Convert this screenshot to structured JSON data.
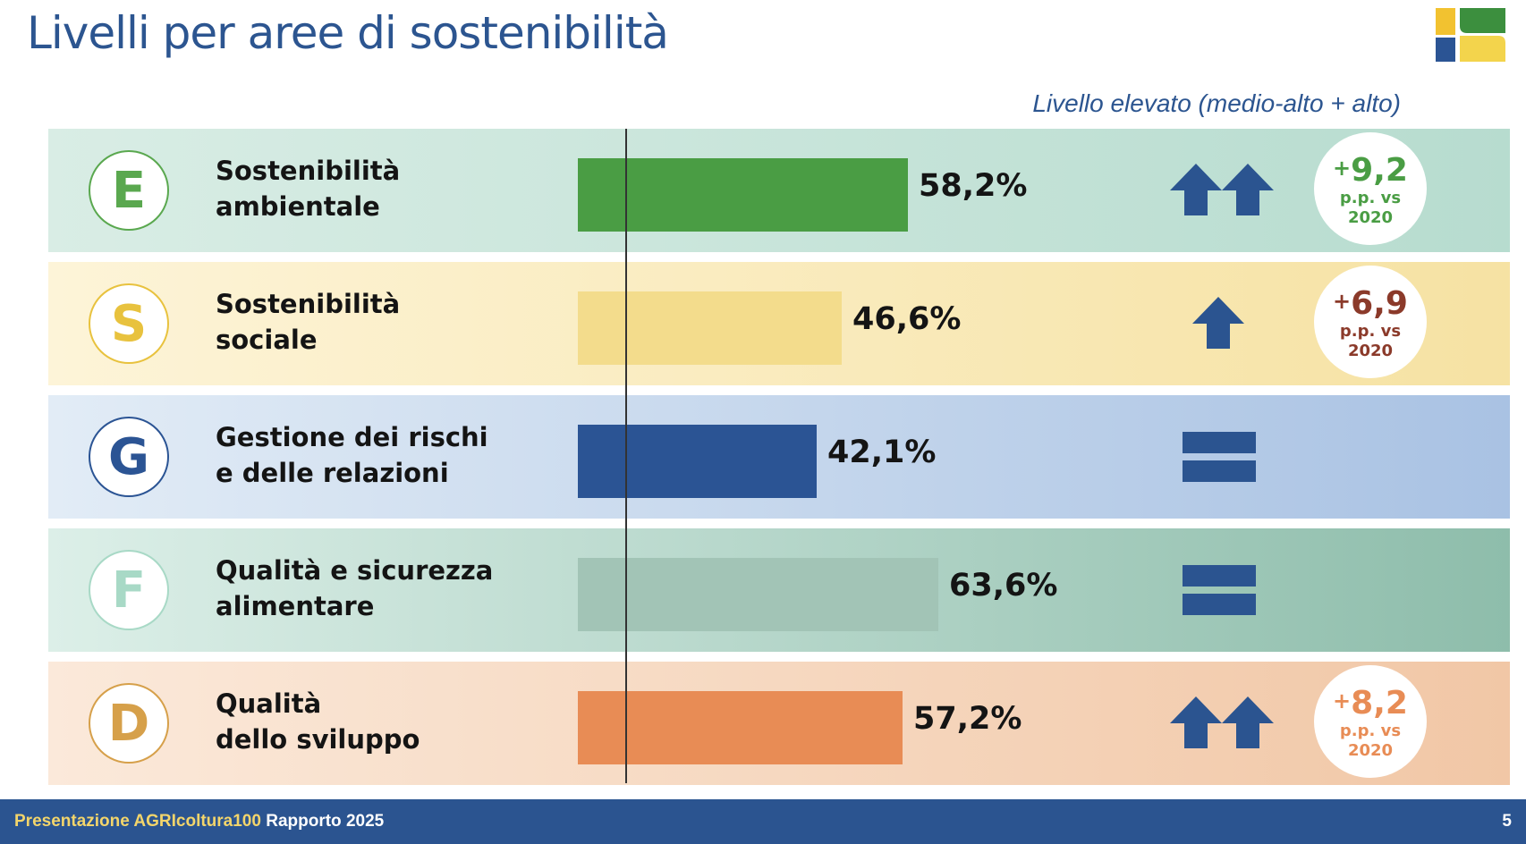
{
  "title": "Livelli per aree di sostenibilità",
  "subtitle": "Livello elevato (medio-alto + alto)",
  "colors": {
    "title": "#2c5590",
    "footer_bg": "#2b5490",
    "footer_highlight": "#f3d56b",
    "arrow": "#2b5490"
  },
  "logo_icon": "agricoltura100-logo-icon",
  "chart_data": {
    "type": "bar",
    "orientation": "horizontal",
    "unit": "%",
    "categories": [
      "Sostenibilità ambientale",
      "Sostenibilità sociale",
      "Gestione dei rischi e delle relazioni",
      "Qualità e sicurezza alimentare",
      "Qualità dello sviluppo"
    ],
    "values": [
      58.2,
      46.6,
      42.1,
      63.6,
      57.2
    ],
    "xlim": [
      0,
      100
    ],
    "grid": false
  },
  "rows": [
    {
      "letter": "E",
      "label_lines": [
        "Sostenibilità",
        "ambientale"
      ],
      "value_label": "58,2%",
      "trend": "double-up",
      "trend_icon": "double-up-arrow-icon",
      "badge": {
        "sign": "+",
        "value": "9,2",
        "note_1": "p.p. vs",
        "note_2": "2020"
      },
      "colors": {
        "row_from": "#d9ede5",
        "row_to": "#b7dccf",
        "bar": "#4a9d44",
        "letter": "#5aa84f",
        "badge_value": "#4a9d44"
      }
    },
    {
      "letter": "S",
      "label_lines": [
        "Sostenibilità",
        "sociale"
      ],
      "value_label": "46,6%",
      "trend": "up",
      "trend_icon": "up-arrow-icon",
      "badge": {
        "sign": "+",
        "value": "6,9",
        "note_1": "p.p. vs",
        "note_2": "2020"
      },
      "colors": {
        "row_from": "#fdf4d8",
        "row_to": "#f6e2a3",
        "bar": "#f3dc8c",
        "letter": "#e8c23e",
        "badge_value": "#8b3a2a"
      }
    },
    {
      "letter": "G",
      "label_lines": [
        "Gestione dei rischi",
        "e delle relazioni"
      ],
      "value_label": "42,1%",
      "trend": "equal",
      "trend_icon": "equal-icon",
      "badge": null,
      "colors": {
        "row_from": "#e2ecf6",
        "row_to": "#a9c2e3",
        "bar": "#2b5494",
        "letter": "#2b5494",
        "badge_value": "#2b5494"
      }
    },
    {
      "letter": "F",
      "label_lines": [
        "Qualità e sicurezza",
        "alimentare"
      ],
      "value_label": "63,6%",
      "trend": "equal",
      "trend_icon": "equal-icon",
      "badge": null,
      "colors": {
        "row_from": "#dcefe8",
        "row_to": "#8ebdab",
        "bar": "#a2c4b6",
        "letter": "#a8d9c6",
        "badge_value": "#4a9d44"
      }
    },
    {
      "letter": "D",
      "label_lines": [
        "Qualità",
        "dello sviluppo"
      ],
      "value_label": "57,2%",
      "trend": "double-up",
      "trend_icon": "double-up-arrow-icon",
      "badge": {
        "sign": "+",
        "value": "8,2",
        "note_1": "p.p. vs",
        "note_2": "2020"
      },
      "colors": {
        "row_from": "#fbe9da",
        "row_to": "#f1c7a6",
        "bar": "#e88c55",
        "letter": "#d6a04a",
        "badge_value": "#e88c55"
      }
    }
  ],
  "footer": {
    "highlight": "Presentazione AGRIcoltura100",
    "rest": " Rapporto 2025",
    "page": "5"
  }
}
